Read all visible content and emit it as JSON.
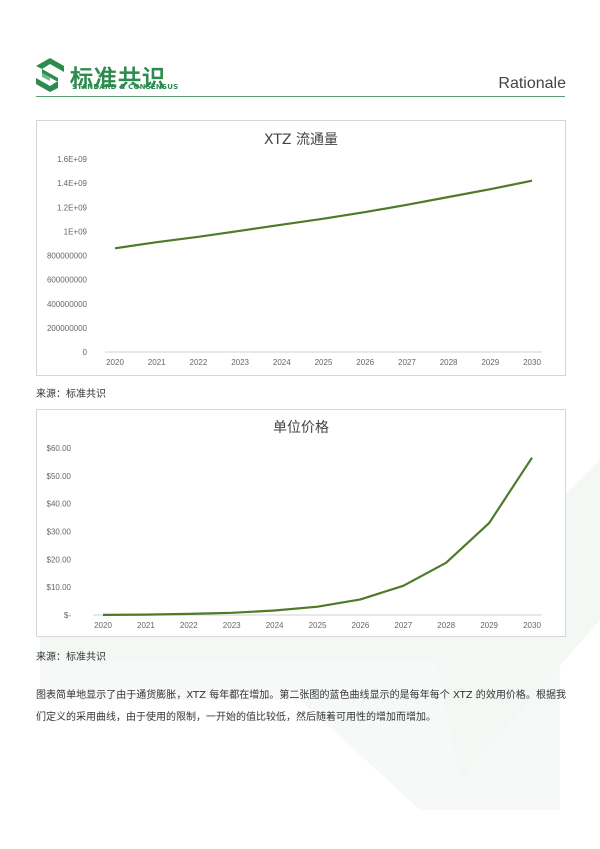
{
  "header": {
    "logo_cn": "标准共识",
    "logo_en": "STANDARD & CONSENSUS",
    "section": "Rationale"
  },
  "sources": {
    "chart1": "来源：标准共识",
    "chart2": "来源：标准共识"
  },
  "paragraph": "图表简单地显示了由于通货膨胀，XTZ 每年都在增加。第二张图的蓝色曲线显示的是每年每个 XTZ 的效用价格。根据我们定义的采用曲线，由于使用的限制，一开始的值比较低，然后随着可用性的增加而增加。",
  "chart_data": [
    {
      "type": "line",
      "title": "XTZ 流通量",
      "categories": [
        "2020",
        "2021",
        "2022",
        "2023",
        "2024",
        "2025",
        "2026",
        "2027",
        "2028",
        "2029",
        "2030"
      ],
      "series": [
        {
          "values": [
            860000000,
            910000000,
            955000000,
            1005000000,
            1055000000,
            1105000000,
            1160000000,
            1220000000,
            1285000000,
            1350000000,
            1420000000
          ]
        }
      ],
      "yticks": [
        "0",
        "200000000",
        "400000000",
        "600000000",
        "800000000",
        "1E+09",
        "1.2E+09",
        "1.4E+09",
        "1.6E+09"
      ],
      "ylim": [
        0,
        1600000000
      ],
      "grid": false,
      "line_color": "#4f7a28"
    },
    {
      "type": "line",
      "title": "单位价格",
      "categories": [
        "2020",
        "2021",
        "2022",
        "2023",
        "2024",
        "2025",
        "2026",
        "2027",
        "2028",
        "2029",
        "2030"
      ],
      "series": [
        {
          "values": [
            0.05,
            0.15,
            0.4,
            0.8,
            1.6,
            3.0,
            5.6,
            10.5,
            18.8,
            33.0,
            56.5
          ]
        }
      ],
      "yticks": [
        "$-",
        "$10.00",
        "$20.00",
        "$30.00",
        "$40.00",
        "$50.00",
        "$60.00"
      ],
      "ylim": [
        0,
        60
      ],
      "grid": false,
      "line_color": "#4f7a28"
    }
  ]
}
